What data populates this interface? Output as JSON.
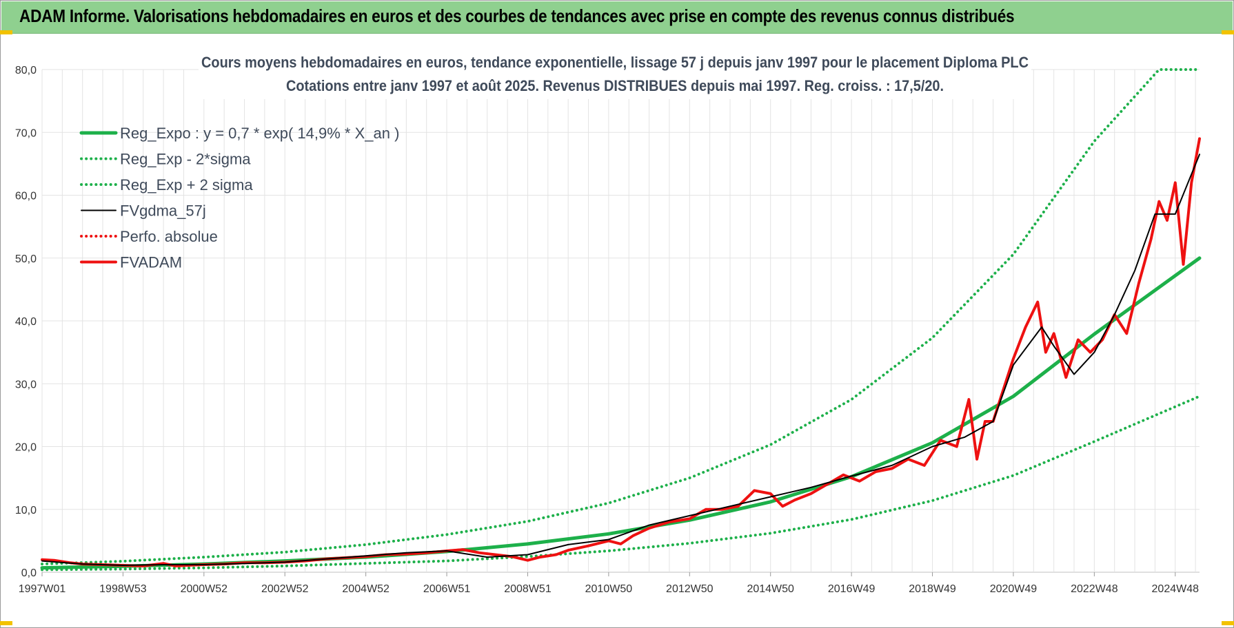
{
  "banner": {
    "title": "ADAM Informe. Valorisations hebdomadaires en euros et des courbes de tendances avec prise en compte des revenus connus distribués"
  },
  "colors": {
    "banner_bg": "#8fd08f",
    "trend_green": "#1db04a",
    "price_red": "#ee1111",
    "smooth_black": "#000000",
    "grid": "#e3e3e3"
  },
  "chart_data": {
    "type": "line",
    "title": "Cours moyens hebdomadaires en euros, tendance exponentielle, lissage 57 j depuis janv 1997  pour le placement Diploma PLC",
    "subtitle": "Cotations entre janv 1997 et août 2025. Revenus DISTRIBUES depuis mai 1997. Reg. croiss. : 17,5/20.",
    "xlabel": "",
    "ylabel": "",
    "ylim": [
      0,
      80
    ],
    "yticks": [
      "0,0",
      "10,0",
      "20,0",
      "30,0",
      "40,0",
      "50,0",
      "60,0",
      "70,0",
      "80,0"
    ],
    "xticks": [
      "1997W01",
      "1998W53",
      "2000W52",
      "2002W52",
      "2004W52",
      "2006W51",
      "2008W51",
      "2010W50",
      "2012W50",
      "2014W50",
      "2016W49",
      "2018W49",
      "2020W49",
      "2022W48",
      "2024W48"
    ],
    "x_start_year": 1997.0,
    "x_end_year": 2025.6,
    "grid": true,
    "legend_position": "top-left",
    "series": [
      {
        "name": "Reg_Expo : y = 0,7 * exp( 14,9% *  X_an )",
        "style": "solid-thick",
        "color": "#1db04a",
        "x": [
          1997,
          1999,
          2001,
          2003,
          2005,
          2007,
          2009,
          2011,
          2013,
          2015,
          2017,
          2019,
          2021,
          2023,
          2025.6
        ],
        "values": [
          0.7,
          0.95,
          1.3,
          1.8,
          2.4,
          3.3,
          4.5,
          6.1,
          8.3,
          11.2,
          15.2,
          20.6,
          28.0,
          37.9,
          50.0
        ]
      },
      {
        "name": "Reg_Exp - 2*sigma",
        "style": "dotted",
        "color": "#1db04a",
        "x": [
          1997,
          1999,
          2001,
          2003,
          2005,
          2007,
          2009,
          2011,
          2013,
          2015,
          2017,
          2019,
          2021,
          2023,
          2025.6
        ],
        "values": [
          0.4,
          0.5,
          0.7,
          1.0,
          1.4,
          1.8,
          2.5,
          3.4,
          4.6,
          6.2,
          8.4,
          11.4,
          15.4,
          20.8,
          28.0
        ]
      },
      {
        "name": "Reg_Exp + 2 sigma",
        "style": "dotted",
        "color": "#1db04a",
        "x": [
          1997,
          1999,
          2001,
          2003,
          2005,
          2007,
          2009,
          2011,
          2013,
          2015,
          2017,
          2019,
          2021,
          2023,
          2024.6,
          2025.6
        ],
        "values": [
          1.3,
          1.75,
          2.4,
          3.2,
          4.4,
          6.0,
          8.1,
          11.0,
          15.0,
          20.3,
          27.5,
          37.3,
          50.6,
          68.6,
          80.0,
          80.0
        ]
      },
      {
        "name": "FVgdma_57j",
        "style": "solid",
        "color": "#000000",
        "x": [
          1997,
          1998,
          1999,
          2000,
          2001,
          2002,
          2003,
          2004,
          2005,
          2006,
          2007,
          2008,
          2009,
          2010,
          2011,
          2012,
          2013,
          2014,
          2015,
          2016,
          2017,
          2018,
          2019,
          2019.8,
          2020.5,
          2021,
          2021.7,
          2022,
          2022.5,
          2023,
          2023.5,
          2024,
          2024.5,
          2025,
          2025.6
        ],
        "values": [
          1.8,
          1.3,
          1.1,
          1.2,
          1.2,
          1.4,
          1.6,
          2.1,
          2.6,
          3.1,
          3.4,
          2.4,
          2.8,
          4.4,
          5.2,
          7.5,
          9.0,
          10.5,
          12.0,
          13.5,
          15.3,
          17.0,
          20.0,
          21.5,
          24.0,
          33.0,
          39.0,
          36.0,
          31.5,
          35.0,
          41.0,
          48.0,
          57.0,
          57.0,
          66.5
        ]
      },
      {
        "name": "Perfo. absolue",
        "style": "dotted",
        "color": "#ee1111",
        "x": [],
        "values": []
      },
      {
        "name": "FVADAM",
        "style": "solid-thick",
        "color": "#ee1111",
        "x": [
          1997.0,
          1997.3,
          1997.7,
          1998.0,
          1998.5,
          1999.0,
          1999.5,
          2000.0,
          2000.3,
          2000.6,
          2001.0,
          2001.5,
          2002.0,
          2002.5,
          2003.0,
          2003.5,
          2004.0,
          2004.5,
          2005.0,
          2005.5,
          2006.0,
          2006.5,
          2007.0,
          2007.4,
          2007.8,
          2008.2,
          2008.6,
          2009.0,
          2009.3,
          2009.7,
          2010.0,
          2010.5,
          2011.0,
          2011.3,
          2011.6,
          2012.0,
          2012.5,
          2013.0,
          2013.4,
          2013.8,
          2014.2,
          2014.6,
          2015.0,
          2015.3,
          2015.6,
          2016.0,
          2016.4,
          2016.8,
          2017.2,
          2017.6,
          2018.0,
          2018.4,
          2018.8,
          2019.2,
          2019.6,
          2019.9,
          2020.1,
          2020.3,
          2020.5,
          2020.7,
          2021.0,
          2021.3,
          2021.6,
          2021.8,
          2022.0,
          2022.3,
          2022.6,
          2022.9,
          2023.2,
          2023.5,
          2023.8,
          2024.1,
          2024.4,
          2024.6,
          2024.8,
          2025.0,
          2025.2,
          2025.4,
          2025.6
        ],
        "values": [
          2.0,
          1.9,
          1.5,
          1.3,
          1.2,
          1.1,
          1.0,
          1.4,
          1.0,
          1.1,
          1.2,
          1.3,
          1.5,
          1.5,
          1.6,
          1.8,
          2.1,
          2.3,
          2.5,
          2.8,
          2.9,
          3.1,
          3.4,
          3.6,
          3.1,
          2.8,
          2.5,
          1.9,
          2.4,
          2.8,
          3.5,
          4.2,
          5.0,
          4.5,
          5.8,
          7.0,
          8.0,
          8.5,
          10.0,
          10.0,
          10.5,
          13.0,
          12.5,
          10.5,
          11.5,
          12.5,
          14.0,
          15.5,
          14.5,
          16.0,
          16.5,
          18.0,
          17.0,
          21.0,
          20.0,
          27.5,
          18.0,
          24.0,
          24.0,
          28.0,
          34.0,
          39.0,
          43.0,
          35.0,
          38.0,
          31.0,
          37.0,
          35.0,
          37.0,
          41.0,
          38.0,
          46.0,
          53.0,
          59.0,
          56.0,
          62.0,
          49.0,
          62.0,
          69.0
        ]
      }
    ]
  }
}
